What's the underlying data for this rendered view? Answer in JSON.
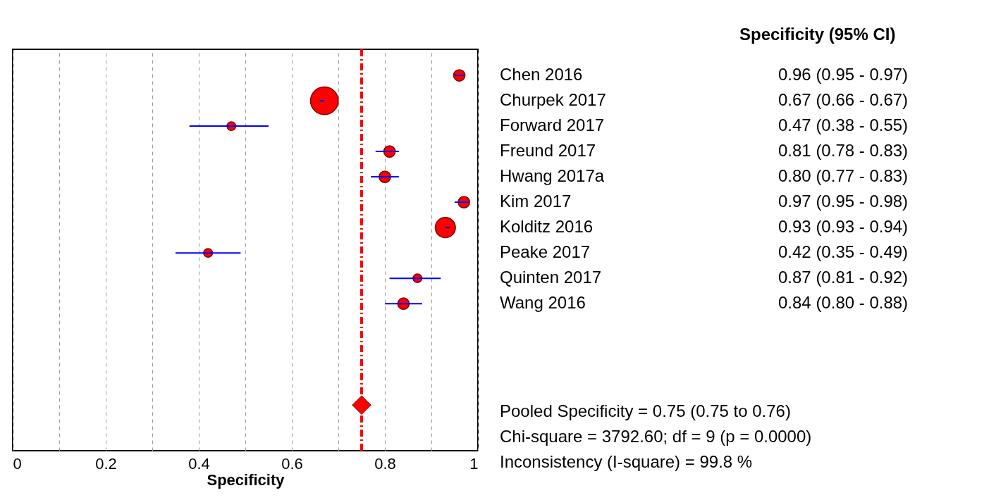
{
  "chart_data": {
    "type": "bubble",
    "orientation": "horizontal",
    "xlabel": "Specificity",
    "categories": [
      "Chen 2016",
      "Churpek 2017",
      "Forward 2017",
      "Freund 2017",
      "Hwang 2017a",
      "Kim 2017",
      "Kolditz 2016",
      "Peake 2017",
      "Quinten 2017",
      "Wang 2016",
      null,
      null,
      null,
      null
    ],
    "series": [
      {
        "color": "#ff0000",
        "values": [
          0.96,
          0.67,
          0.47,
          0.81,
          0.8,
          0.97,
          0.93,
          0.42,
          0.87,
          0.84,
          null,
          null,
          null,
          null
        ],
        "sizes": [
          0.17,
          1,
          0.1,
          0.17,
          0.17,
          0.17,
          0.53,
          0.1,
          0.1,
          0.17,
          null,
          null,
          null,
          null
        ],
        "errors": [
          [
            0.95,
            0.97
          ],
          [
            0.66,
            0.67
          ],
          [
            0.38,
            0.55
          ],
          [
            0.78,
            0.83
          ],
          [
            0.77,
            0.83
          ],
          [
            0.95,
            0.98
          ],
          [
            0.93,
            0.94
          ],
          [
            0.35,
            0.49
          ],
          [
            0.81,
            0.92
          ],
          [
            0.8,
            0.88
          ],
          null,
          null,
          null,
          null
        ],
        "value_labels": [
          "0.96 (0.95 - 0.97)",
          "0.67 (0.66 - 0.67)",
          "0.47 (0.38 - 0.55)",
          "0.81 (0.78 - 0.83)",
          "0.80 (0.77 - 0.83)",
          "0.97 (0.95 - 0.98)",
          "0.93 (0.93 - 0.94)",
          "0.42 (0.35 - 0.49)",
          "0.87 (0.81 - 0.92)",
          "0.84 (0.80 - 0.88)",
          null,
          null,
          null,
          null
        ]
      },
      {
        "type": "scatter",
        "marker": "diamond",
        "color": "#ff0000",
        "values": [
          null,
          null,
          null,
          null,
          null,
          null,
          null,
          null,
          null,
          null,
          null,
          null,
          null,
          0.75
        ]
      }
    ],
    "xlim": [
      0,
      1
    ],
    "xticks": [
      0,
      {
        "value": 0.1,
        "label": null
      },
      0.2,
      {
        "value": 0.3,
        "label": null
      },
      0.4,
      {
        "value": 0.5,
        "label": null
      },
      0.6,
      {
        "value": 0.7,
        "label": null
      },
      0.8,
      {
        "value": 0.9,
        "label": null
      },
      1
    ],
    "grid": "x",
    "ref_lines": [
      {
        "axis": "x",
        "value": 0.75,
        "color": "#ff0000",
        "line_style": "dashed"
      }
    ],
    "annotations": [
      "Specificity (95% CI)",
      "Pooled Specificity = 0.75 (0.75 to 0.76)",
      "Chi-square = 3792.60; df =  9 (p = 0.0000)",
      "Inconsistency (I-square) = 99.8 %"
    ]
  }
}
